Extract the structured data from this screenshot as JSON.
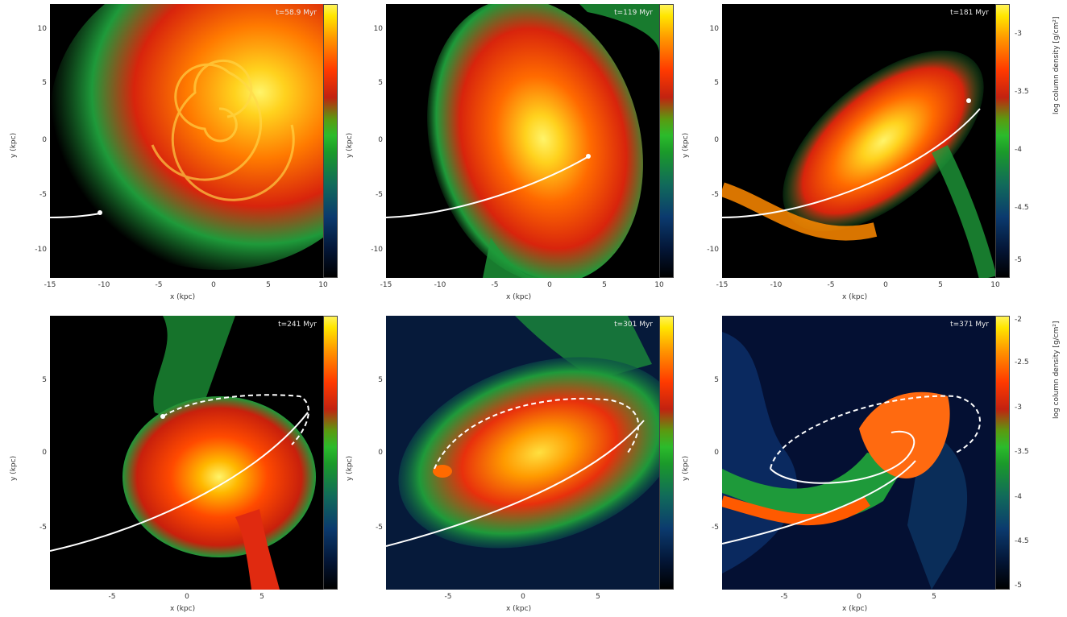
{
  "top_row": {
    "y_ticks": [
      "10",
      "5",
      "0",
      "-5",
      "-10"
    ],
    "x_ticks": [
      "-15",
      "-10",
      "-5",
      "0",
      "5",
      "10"
    ],
    "xlabel": "x (kpc)",
    "ylabel": "y (kpc)",
    "colorbar_ticks": [
      "-3",
      "-3.5",
      "-4",
      "-4.5",
      "-5"
    ],
    "colorbar_label": "log column density [g/cm²]",
    "panels": [
      {
        "time": "t=58.9  Myr"
      },
      {
        "time": "t=119  Myr"
      },
      {
        "time": "t=181  Myr"
      }
    ]
  },
  "bottom_row": {
    "y_ticks": [
      "5",
      "0",
      "-5"
    ],
    "x_ticks": [
      "-5",
      "0",
      "5"
    ],
    "xlabel": "x (kpc)",
    "ylabel": "y (kpc)",
    "colorbar_ticks": [
      "-2",
      "-2.5",
      "-3",
      "-3.5",
      "-4",
      "-4.5",
      "-5"
    ],
    "colorbar_label": "log column density [g/cm²]",
    "panels": [
      {
        "time": "t=241  Myr"
      },
      {
        "time": "t=301  Myr"
      },
      {
        "time": "t=371  Myr"
      }
    ]
  },
  "colors": {
    "background": "#000000",
    "gas_low": "#1e9a3a",
    "gas_mid": "#e02a10",
    "gas_high": "#ffd21e",
    "orbit": "#ffffff"
  }
}
